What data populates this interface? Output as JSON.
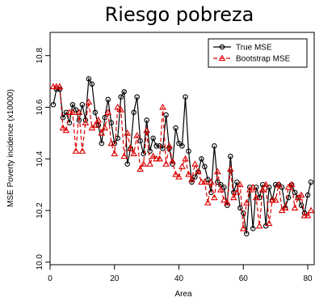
{
  "chart_data": {
    "type": "line",
    "title": "Riesgo pobreza",
    "xlabel": "Area",
    "ylabel": "MSE Poverty incidence (x10000)",
    "xlim": [
      0,
      82
    ],
    "ylim": [
      9.99,
      10.89
    ],
    "xticks": [
      0,
      20,
      40,
      60,
      80
    ],
    "yticks": [
      10.0,
      10.2,
      10.4,
      10.6,
      10.8
    ],
    "legend_position": "top-right",
    "grid": false,
    "x": [
      1,
      2,
      3,
      4,
      5,
      6,
      7,
      8,
      9,
      10,
      11,
      12,
      13,
      14,
      15,
      16,
      17,
      18,
      19,
      20,
      21,
      22,
      23,
      24,
      25,
      26,
      27,
      28,
      29,
      30,
      31,
      32,
      33,
      34,
      35,
      36,
      37,
      38,
      39,
      40,
      41,
      42,
      43,
      44,
      45,
      46,
      47,
      48,
      49,
      50,
      51,
      52,
      53,
      54,
      55,
      56,
      57,
      58,
      59,
      60,
      61,
      62,
      63,
      64,
      65,
      66,
      67,
      68,
      69,
      70,
      71,
      72,
      73,
      74,
      75,
      76,
      77,
      78,
      79,
      80,
      81
    ],
    "series": [
      {
        "name": "True MSE",
        "color": "#000000",
        "line": "solid",
        "marker": "circle",
        "values": [
          10.61,
          10.67,
          10.67,
          10.56,
          10.58,
          10.54,
          10.61,
          10.59,
          10.55,
          10.61,
          10.55,
          10.71,
          10.69,
          10.58,
          10.53,
          10.46,
          10.56,
          10.63,
          10.54,
          10.46,
          10.48,
          10.64,
          10.66,
          10.38,
          10.44,
          10.58,
          10.64,
          10.47,
          10.42,
          10.55,
          10.43,
          10.48,
          10.45,
          10.45,
          10.44,
          10.57,
          10.44,
          10.38,
          10.52,
          10.46,
          10.45,
          10.64,
          10.43,
          10.31,
          10.33,
          10.35,
          10.4,
          10.37,
          10.32,
          10.27,
          10.45,
          10.31,
          10.3,
          10.29,
          10.22,
          10.41,
          10.27,
          10.31,
          10.21,
          10.19,
          10.11,
          10.29,
          10.13,
          10.29,
          10.25,
          10.3,
          10.14,
          10.29,
          10.24,
          10.3,
          10.3,
          10.29,
          10.21,
          10.25,
          10.3,
          10.27,
          10.25,
          10.22,
          10.19,
          10.26,
          10.31
        ]
      },
      {
        "name": "Bootstrap MSE",
        "color": "#dd0000",
        "line": "dashed",
        "marker": "triangle",
        "values": [
          10.68,
          10.68,
          10.68,
          10.52,
          10.51,
          10.58,
          10.58,
          10.43,
          10.58,
          10.43,
          10.54,
          10.62,
          10.52,
          10.53,
          10.55,
          10.5,
          10.52,
          10.58,
          10.46,
          10.42,
          10.6,
          10.59,
          10.41,
          10.5,
          10.44,
          10.42,
          10.49,
          10.36,
          10.38,
          10.51,
          10.38,
          10.41,
          10.4,
          10.4,
          10.6,
          10.38,
          10.45,
          10.39,
          10.34,
          10.33,
          10.37,
          10.4,
          10.34,
          10.32,
          10.38,
          10.35,
          10.31,
          10.31,
          10.23,
          10.31,
          10.25,
          10.35,
          10.28,
          10.24,
          10.23,
          10.36,
          10.25,
          10.27,
          10.3,
          10.13,
          10.23,
          10.28,
          10.29,
          10.25,
          10.14,
          10.28,
          10.3,
          10.15,
          10.24,
          10.24,
          10.3,
          10.2,
          10.21,
          10.29,
          10.3,
          10.21,
          10.25,
          10.26,
          10.18,
          10.18,
          10.2
        ]
      }
    ]
  }
}
